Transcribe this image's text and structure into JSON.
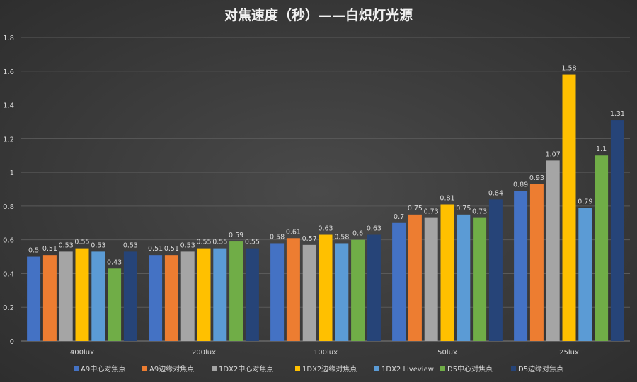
{
  "chart_data": {
    "type": "bar",
    "title": "对焦速度（秒）——白炽灯光源",
    "xlabel": "",
    "ylabel": "",
    "categories": [
      "400lux",
      "200lux",
      "100lux",
      "50lux",
      "25lux"
    ],
    "ylim": [
      0,
      1.8
    ],
    "yticks": [
      "0",
      "0.2",
      "0.4",
      "0.6",
      "0.8",
      "1",
      "1.2",
      "1.4",
      "1.6",
      "1.8"
    ],
    "grid": true,
    "legend_position": "bottom",
    "series": [
      {
        "name": "A9中心对焦点",
        "color": "#4472C4",
        "values": [
          0.5,
          0.51,
          0.58,
          0.7,
          0.89
        ]
      },
      {
        "name": "A9边缘对焦点",
        "color": "#ED7D31",
        "values": [
          0.51,
          0.51,
          0.61,
          0.75,
          0.93
        ]
      },
      {
        "name": "1DX2中心对焦点",
        "color": "#A5A5A5",
        "values": [
          0.53,
          0.53,
          0.57,
          0.73,
          1.07
        ]
      },
      {
        "name": "1DX2边缘对焦点",
        "color": "#FFC000",
        "values": [
          0.55,
          0.55,
          0.63,
          0.81,
          1.58
        ]
      },
      {
        "name": "1DX2 Liveview",
        "color": "#5B9BD5",
        "values": [
          0.53,
          0.55,
          0.58,
          0.75,
          0.79
        ]
      },
      {
        "name": "D5中心对焦点",
        "color": "#70AD47",
        "values": [
          0.43,
          0.59,
          0.6,
          0.73,
          1.1
        ]
      },
      {
        "name": "D5边缘对焦点",
        "color": "#264478",
        "values": [
          0.53,
          0.55,
          0.63,
          0.84,
          1.31
        ]
      }
    ]
  }
}
